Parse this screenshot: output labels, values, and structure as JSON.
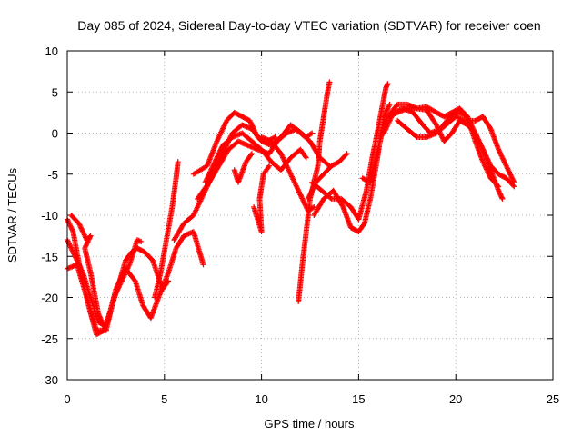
{
  "chart_data": {
    "type": "scatter",
    "title": "Day 085 of 2024, Sidereal Day-to-day VTEC variation (SDTVAR) for receiver coen",
    "xlabel": "GPS time / hours",
    "ylabel": "SDTVAR / TECUs",
    "xlim": [
      0,
      25
    ],
    "ylim": [
      -30,
      10
    ],
    "xticks": [
      0,
      5,
      10,
      15,
      20,
      25
    ],
    "yticks": [
      -30,
      -25,
      -20,
      -15,
      -10,
      -5,
      0,
      5,
      10
    ],
    "grid": true,
    "marker": "+",
    "color": "#ff0000",
    "series": [
      {
        "name": "track-1",
        "points": [
          [
            0,
            -10.5
          ],
          [
            0.3,
            -12
          ],
          [
            0.7,
            -17
          ],
          [
            1.1,
            -21
          ],
          [
            1.5,
            -24.5
          ],
          [
            1.9,
            -24
          ],
          [
            2.3,
            -21
          ],
          [
            2.7,
            -18
          ],
          [
            3.0,
            -15.5
          ],
          [
            3.3,
            -14.5
          ],
          [
            3.6,
            -14
          ],
          [
            4.0,
            -14.5
          ],
          [
            4.4,
            -15.5
          ],
          [
            4.9,
            -19
          ],
          [
            5.2,
            -18
          ]
        ]
      },
      {
        "name": "track-2",
        "points": [
          [
            0,
            -13
          ],
          [
            0.4,
            -15
          ],
          [
            0.8,
            -17
          ],
          [
            1.2,
            -20
          ],
          [
            1.6,
            -23
          ],
          [
            2.0,
            -23.5
          ],
          [
            2.4,
            -20
          ],
          [
            2.8,
            -18
          ],
          [
            3.2,
            -16
          ],
          [
            3.6,
            -13
          ],
          [
            3.8,
            -13.2
          ]
        ]
      },
      {
        "name": "track-3",
        "points": [
          [
            0,
            -16.5
          ],
          [
            0.5,
            -16
          ],
          [
            1.0,
            -20
          ],
          [
            1.5,
            -24
          ],
          [
            2.0,
            -24
          ],
          [
            2.5,
            -19
          ],
          [
            3.0,
            -16.5
          ],
          [
            3.5,
            -18
          ],
          [
            3.9,
            -21
          ],
          [
            4.3,
            -22.5
          ],
          [
            4.7,
            -20
          ],
          [
            5.2,
            -17
          ],
          [
            5.6,
            -14
          ],
          [
            6.0,
            -12.5
          ],
          [
            6.5,
            -12
          ],
          [
            7.0,
            -16
          ]
        ]
      },
      {
        "name": "track-4",
        "points": [
          [
            0.2,
            -10
          ],
          [
            0.6,
            -11
          ],
          [
            1.0,
            -13
          ],
          [
            1.2,
            -12.5
          ],
          [
            0.9,
            -14
          ],
          [
            1.2,
            -17
          ],
          [
            1.6,
            -22
          ],
          [
            2.0,
            -24
          ]
        ]
      },
      {
        "name": "track-5",
        "points": [
          [
            4.5,
            -20
          ],
          [
            4.8,
            -17
          ],
          [
            5.1,
            -13
          ],
          [
            5.4,
            -9
          ],
          [
            5.6,
            -5.5
          ],
          [
            5.7,
            -3.5
          ]
        ]
      },
      {
        "name": "track-6",
        "points": [
          [
            5.5,
            -13
          ],
          [
            6.0,
            -11
          ],
          [
            6.5,
            -10
          ],
          [
            7.0,
            -7.5
          ],
          [
            7.5,
            -5
          ],
          [
            8.0,
            -2.5
          ],
          [
            8.5,
            0
          ],
          [
            9.0,
            1
          ],
          [
            9.5,
            0.5
          ],
          [
            10.0,
            -1
          ],
          [
            10.5,
            -1.5
          ],
          [
            11.0,
            -0.5
          ],
          [
            11.5,
            1
          ],
          [
            12.0,
            0
          ],
          [
            12.5,
            -1
          ],
          [
            13.0,
            -3
          ],
          [
            13.5,
            -4
          ]
        ]
      },
      {
        "name": "track-7",
        "points": [
          [
            6.5,
            -5
          ],
          [
            7.2,
            -4
          ],
          [
            7.7,
            -1
          ],
          [
            8.2,
            1.5
          ],
          [
            8.6,
            2.5
          ],
          [
            9.0,
            2
          ],
          [
            9.4,
            1.5
          ],
          [
            9.8,
            -0.5
          ],
          [
            10.3,
            -1
          ],
          [
            10.7,
            -0.5
          ]
        ]
      },
      {
        "name": "track-8",
        "points": [
          [
            6.7,
            -8
          ],
          [
            7.3,
            -6
          ],
          [
            7.8,
            -4
          ],
          [
            8.3,
            -2
          ],
          [
            8.8,
            -1
          ],
          [
            9.3,
            -1.5
          ],
          [
            9.8,
            -2
          ],
          [
            10.4,
            -2.5
          ],
          [
            10.8,
            -1
          ],
          [
            11.3,
            0
          ],
          [
            11.8,
            0.5
          ],
          [
            12.3,
            -0.5
          ],
          [
            12.6,
            0
          ]
        ]
      },
      {
        "name": "track-9",
        "points": [
          [
            7.1,
            -6
          ],
          [
            7.6,
            -3.5
          ],
          [
            8.0,
            -1.5
          ],
          [
            8.5,
            -0.5
          ],
          [
            9.0,
            0
          ],
          [
            9.5,
            -1
          ],
          [
            10.0,
            -2
          ],
          [
            10.5,
            -3.5
          ],
          [
            11.0,
            -4.5
          ],
          [
            11.5,
            -3
          ],
          [
            12.0,
            -2
          ],
          [
            12.3,
            -3
          ]
        ]
      },
      {
        "name": "track-10",
        "points": [
          [
            8.6,
            -4.5
          ],
          [
            8.8,
            -6
          ],
          [
            9.2,
            -3.5
          ],
          [
            9.5,
            -2.5
          ]
        ]
      },
      {
        "name": "track-11",
        "points": [
          [
            9.6,
            -9
          ],
          [
            9.8,
            -10.5
          ],
          [
            10.0,
            -12
          ],
          [
            9.9,
            -8
          ],
          [
            10.1,
            -5
          ],
          [
            10.4,
            -4
          ]
        ]
      },
      {
        "name": "track-12",
        "points": [
          [
            10.0,
            -0.5
          ],
          [
            10.5,
            -1
          ],
          [
            11.0,
            -2.5
          ],
          [
            11.5,
            -5
          ],
          [
            12.0,
            -7.5
          ],
          [
            12.4,
            -9.5
          ],
          [
            12.7,
            -9
          ]
        ]
      },
      {
        "name": "track-13",
        "points": [
          [
            11.9,
            -20.5
          ],
          [
            12.1,
            -16
          ],
          [
            12.3,
            -12
          ],
          [
            12.5,
            -8
          ],
          [
            12.7,
            -6
          ],
          [
            12.9,
            -4
          ],
          [
            13.0,
            -1
          ],
          [
            13.2,
            2
          ],
          [
            13.4,
            5
          ],
          [
            13.5,
            6.2
          ]
        ]
      },
      {
        "name": "track-14",
        "points": [
          [
            12.4,
            -8
          ],
          [
            12.8,
            -6
          ],
          [
            13.2,
            -5
          ],
          [
            13.6,
            -4
          ],
          [
            14.0,
            -3.5
          ],
          [
            14.4,
            -2.5
          ]
        ]
      },
      {
        "name": "track-15",
        "points": [
          [
            12.7,
            -10
          ],
          [
            13.2,
            -8
          ],
          [
            13.7,
            -7
          ],
          [
            14.2,
            -9
          ],
          [
            14.6,
            -11.5
          ],
          [
            15.0,
            -12
          ],
          [
            15.3,
            -11
          ],
          [
            15.6,
            -8
          ],
          [
            15.9,
            -4
          ],
          [
            16.1,
            -1
          ],
          [
            16.3,
            2
          ],
          [
            16.6,
            3.5
          ]
        ]
      },
      {
        "name": "track-16",
        "points": [
          [
            12.6,
            -6
          ],
          [
            13.1,
            -7
          ],
          [
            13.6,
            -8
          ],
          [
            14.1,
            -8
          ],
          [
            14.6,
            -9
          ],
          [
            15.0,
            -10.5
          ],
          [
            15.4,
            -7
          ],
          [
            15.7,
            -3
          ],
          [
            16.0,
            0.5
          ],
          [
            16.2,
            3
          ],
          [
            16.4,
            5.5
          ],
          [
            16.5,
            6
          ]
        ]
      },
      {
        "name": "track-17",
        "points": [
          [
            15.2,
            -5.5
          ],
          [
            15.6,
            -6
          ],
          [
            15.9,
            -3
          ],
          [
            16.2,
            0
          ],
          [
            16.5,
            2
          ],
          [
            17.0,
            2.5
          ],
          [
            17.5,
            3
          ],
          [
            18.0,
            3
          ],
          [
            18.5,
            2.8
          ],
          [
            19.0,
            1
          ],
          [
            19.4,
            -1
          ],
          [
            19.8,
            0
          ],
          [
            20.2,
            1.5
          ],
          [
            20.6,
            1
          ],
          [
            21.0,
            0
          ],
          [
            21.4,
            -2
          ],
          [
            21.8,
            -4
          ],
          [
            22.2,
            -5
          ],
          [
            22.6,
            -5.5
          ],
          [
            23.0,
            -6.5
          ]
        ]
      },
      {
        "name": "track-18",
        "points": [
          [
            16.3,
            0
          ],
          [
            16.8,
            2.5
          ],
          [
            17.3,
            3
          ],
          [
            17.8,
            2.5
          ],
          [
            18.3,
            1
          ],
          [
            18.7,
            0
          ],
          [
            19.2,
            0.5
          ],
          [
            19.7,
            2
          ],
          [
            20.2,
            2.5
          ],
          [
            20.6,
            2
          ],
          [
            21.0,
            0
          ],
          [
            21.4,
            -2
          ],
          [
            21.8,
            -4.5
          ],
          [
            22.2,
            -7
          ],
          [
            22.4,
            -8
          ]
        ]
      },
      {
        "name": "track-19",
        "points": [
          [
            16.5,
            2
          ],
          [
            17.0,
            3.5
          ],
          [
            17.5,
            3.5
          ],
          [
            18.0,
            3
          ],
          [
            18.5,
            3.2
          ],
          [
            19.0,
            2.5
          ],
          [
            19.4,
            2
          ],
          [
            19.8,
            2.5
          ],
          [
            20.2,
            3
          ],
          [
            20.6,
            2
          ],
          [
            21.0,
            -1
          ],
          [
            21.4,
            -3.5
          ],
          [
            21.8,
            -5.5
          ],
          [
            22.2,
            -6.5
          ]
        ]
      },
      {
        "name": "track-20",
        "points": [
          [
            17.0,
            1.5
          ],
          [
            17.5,
            0.5
          ],
          [
            18.0,
            -0.5
          ],
          [
            18.5,
            -0.5
          ],
          [
            19.0,
            0
          ],
          [
            19.5,
            1
          ],
          [
            20.0,
            2
          ],
          [
            20.5,
            1.5
          ],
          [
            21.0,
            1.5
          ],
          [
            21.4,
            2
          ],
          [
            21.8,
            0.5
          ],
          [
            22.2,
            -2
          ],
          [
            22.6,
            -4
          ],
          [
            23.0,
            -6
          ]
        ]
      }
    ]
  }
}
